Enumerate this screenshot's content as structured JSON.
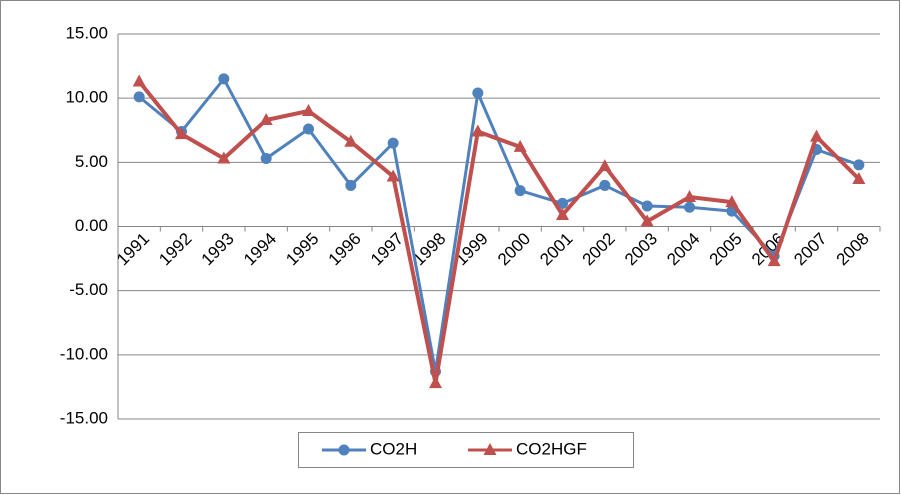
{
  "chart_data": {
    "type": "line",
    "categories": [
      "1991",
      "1992",
      "1993",
      "1994",
      "1995",
      "1996",
      "1997",
      "1998",
      "1999",
      "2000",
      "2001",
      "2002",
      "2003",
      "2004",
      "2005",
      "2006",
      "2007",
      "2008"
    ],
    "series": [
      {
        "name": "CO2H",
        "color": "#4f81bd",
        "marker": "circle",
        "values": [
          10.1,
          7.4,
          11.5,
          5.3,
          7.6,
          3.2,
          6.5,
          -11.3,
          10.4,
          2.8,
          1.8,
          3.2,
          1.6,
          1.5,
          1.2,
          -2.3,
          6.0,
          4.8
        ]
      },
      {
        "name": "CO2HGF",
        "color": "#c0504d",
        "marker": "triangle",
        "values": [
          11.3,
          7.2,
          5.3,
          8.3,
          9.0,
          6.6,
          3.9,
          -12.2,
          7.4,
          6.2,
          0.9,
          4.7,
          0.4,
          2.3,
          1.9,
          -2.7,
          7.0,
          3.7
        ]
      }
    ],
    "ylim": [
      -15,
      15
    ],
    "yticks": [
      {
        "value": -15,
        "label": "-15.00"
      },
      {
        "value": -10,
        "label": "-10.00"
      },
      {
        "value": -5,
        "label": "-5.00"
      },
      {
        "value": 0,
        "label": "0.00"
      },
      {
        "value": 5,
        "label": "5.00"
      },
      {
        "value": 10,
        "label": "10.00"
      },
      {
        "value": 15,
        "label": "15.00"
      }
    ],
    "grid": true,
    "legend": "bottom"
  }
}
